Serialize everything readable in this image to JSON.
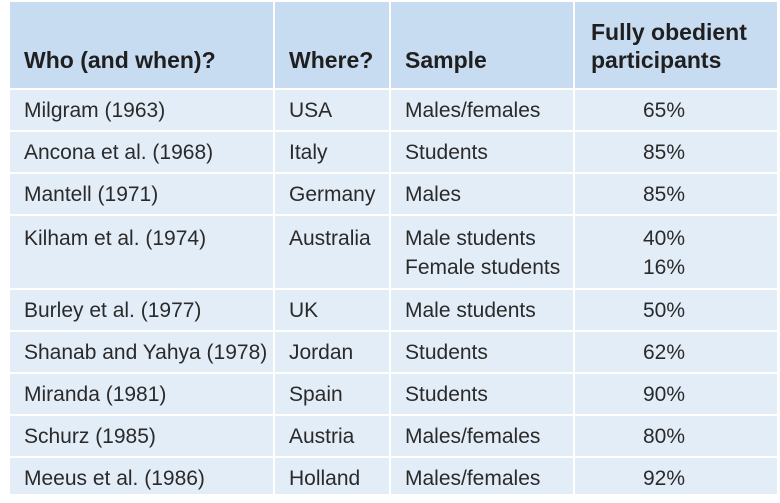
{
  "table": {
    "headers": {
      "who": "Who (and when)?",
      "where": "Where?",
      "sample": "Sample",
      "obedient_line1": "Fully obedient",
      "obedient_line2": "participants"
    },
    "rows": [
      {
        "who": "Milgram (1963)",
        "where": "USA",
        "samples": [
          "Males/females"
        ],
        "obedient": [
          "65%"
        ]
      },
      {
        "who": "Ancona et al. (1968)",
        "where": "Italy",
        "samples": [
          "Students"
        ],
        "obedient": [
          "85%"
        ]
      },
      {
        "who": "Mantell (1971)",
        "where": "Germany",
        "samples": [
          "Males"
        ],
        "obedient": [
          "85%"
        ]
      },
      {
        "who": "Kilham et al. (1974)",
        "where": "Australia",
        "samples": [
          "Male students",
          "Female students"
        ],
        "obedient": [
          "40%",
          "16%"
        ]
      },
      {
        "who": "Burley et al. (1977)",
        "where": "UK",
        "samples": [
          "Male students"
        ],
        "obedient": [
          "50%"
        ]
      },
      {
        "who": "Shanab and Yahya (1978)",
        "where": "Jordan",
        "samples": [
          "Students"
        ],
        "obedient": [
          "62%"
        ]
      },
      {
        "who": "Miranda (1981)",
        "where": "Spain",
        "samples": [
          "Students"
        ],
        "obedient": [
          "90%"
        ]
      },
      {
        "who": "Schurz (1985)",
        "where": "Austria",
        "samples": [
          "Males/females"
        ],
        "obedient": [
          "80%"
        ]
      },
      {
        "who": "Meeus et al. (1986)",
        "where": "Holland",
        "samples": [
          "Males/females"
        ],
        "obedient": [
          "92%"
        ]
      }
    ]
  },
  "colors": {
    "header_bg": "#c7dbf1",
    "body_bg": "#e3edf8",
    "divider": "#ffffff"
  }
}
